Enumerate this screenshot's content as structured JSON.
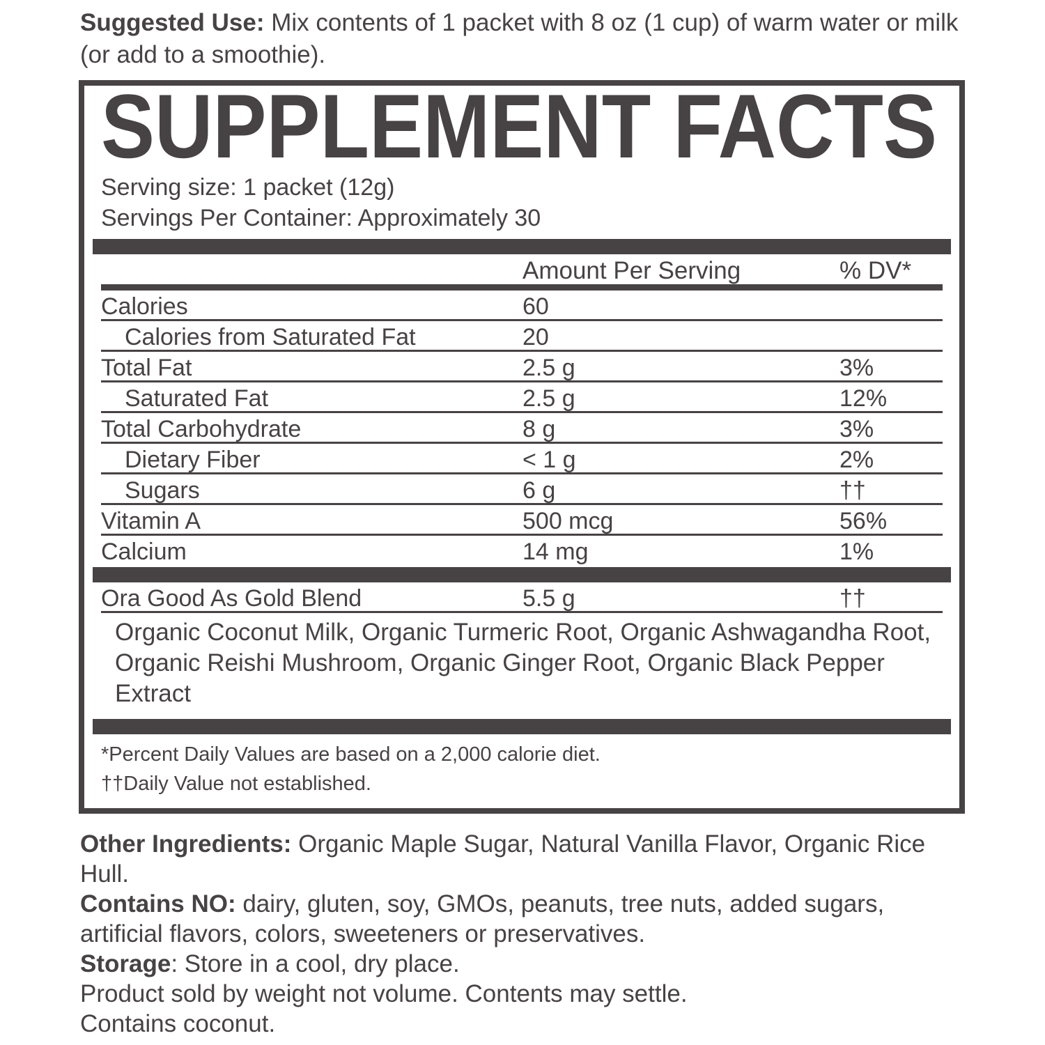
{
  "suggested_use": {
    "prefix": "Suggested Use:",
    "text": " Mix contents of 1 packet with 8 oz (1 cup) of warm water or milk (or add to a smoothie)."
  },
  "panel": {
    "title": "SUPPLEMENT FACTS",
    "serving_size": "Serving size: 1 packet (12g)",
    "servings_per_container": "Servings Per Container: Approximately 30",
    "columns": {
      "amount": "Amount Per Serving",
      "dv": "% DV*"
    },
    "rows": [
      {
        "label": "Calories",
        "amount": "60",
        "dv": "",
        "indent": false
      },
      {
        "label": "Calories from Saturated Fat",
        "amount": "20",
        "dv": "",
        "indent": true
      },
      {
        "label": "Total Fat",
        "amount": "2.5 g",
        "dv": "3%",
        "indent": false
      },
      {
        "label": "Saturated Fat",
        "amount": "2.5 g",
        "dv": "12%",
        "indent": true
      },
      {
        "label": "Total Carbohydrate",
        "amount": "8 g",
        "dv": "3%",
        "indent": false
      },
      {
        "label": "Dietary Fiber",
        "amount": "< 1 g",
        "dv": "2%",
        "indent": true
      },
      {
        "label": "Sugars",
        "amount": "6 g",
        "dv": "††",
        "indent": true
      },
      {
        "label": "Vitamin A",
        "amount": "500 mcg",
        "dv": "56%",
        "indent": false
      },
      {
        "label": "Calcium",
        "amount": "14 mg",
        "dv": "1%",
        "indent": false
      }
    ],
    "blend": {
      "label": "Ora Good As Gold Blend",
      "amount": "5.5 g",
      "dv": "††",
      "ingredients": "Organic Coconut Milk, Organic Turmeric Root, Organic Ashwagandha Root, Organic Reishi Mushroom, Organic Ginger Root, Organic Black Pepper Extract"
    },
    "footnotes": {
      "percent_dv": "*Percent Daily Values are based on a 2,000 calorie diet.",
      "not_established": "††Daily Value not established."
    }
  },
  "bottom": {
    "other_ingredients": {
      "prefix": "Other Ingredients:",
      "text": " Organic Maple Sugar, Natural Vanilla Flavor, Organic Rice Hull."
    },
    "contains_no": {
      "prefix": "Contains NO:",
      "text": " dairy, gluten, soy, GMOs, peanuts, tree nuts, added sugars, artificial flavors, colors, sweeteners or preservatives."
    },
    "storage": {
      "prefix": "Storage",
      "text": ": Store in a cool, dry place."
    },
    "sold_by_weight": "Product sold by weight not volume. Contents may settle.",
    "contains": "Contains coconut."
  },
  "colors": {
    "ink": "#474243",
    "background": "#ffffff"
  }
}
